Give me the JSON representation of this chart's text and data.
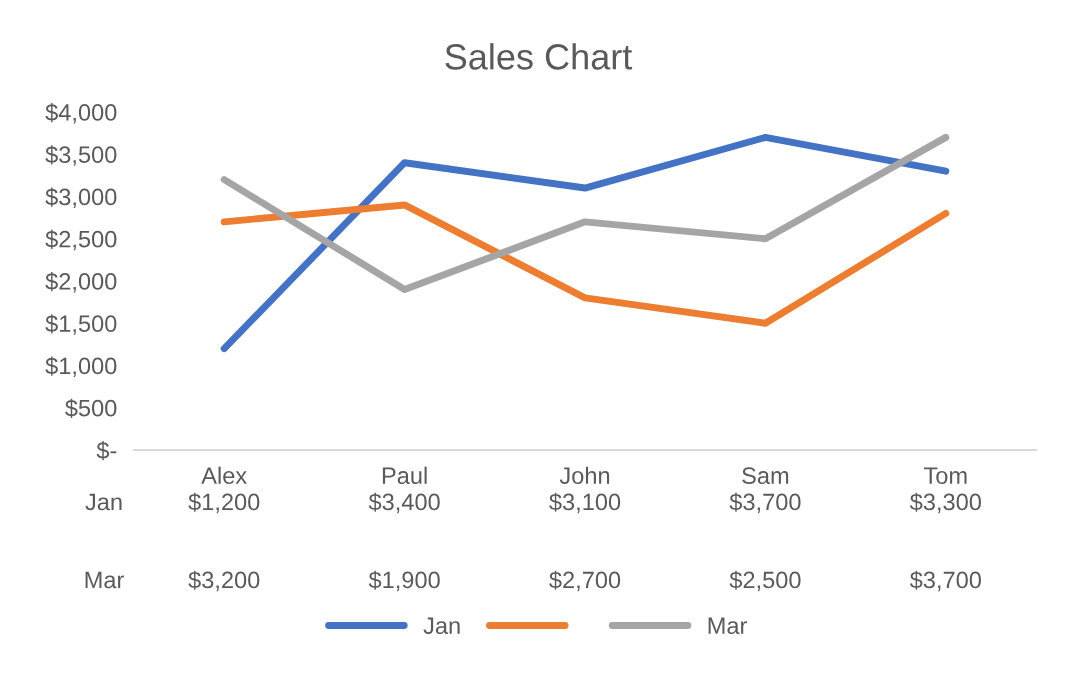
{
  "chart_data": {
    "type": "line",
    "title": "Sales Chart",
    "categories": [
      "Alex",
      "Paul",
      "John",
      "Sam",
      "Tom"
    ],
    "series": [
      {
        "name": "Jan",
        "color": "#4472c4",
        "values": [
          1200,
          3400,
          3100,
          3700,
          3300
        ],
        "value_labels": [
          "$1,200",
          "$3,400",
          "$3,100",
          "$3,700",
          "$3,300"
        ]
      },
      {
        "color": "#ed7d31",
        "values": [
          2700,
          2900,
          1800,
          1500,
          2800
        ]
      },
      {
        "name": "Mar",
        "color": "#a5a5a5",
        "values": [
          3200,
          1900,
          2700,
          2500,
          3700
        ],
        "value_labels": [
          "$3,200",
          "$1,900",
          "$2,700",
          "$2,500",
          "$3,700"
        ]
      }
    ],
    "ylim": [
      0,
      4000
    ],
    "yticks": [
      {
        "value": 0,
        "label": "$-"
      },
      {
        "value": 500,
        "label": "$500"
      },
      {
        "value": 1000,
        "label": "$1,000"
      },
      {
        "value": 1500,
        "label": "$1,500"
      },
      {
        "value": 2000,
        "label": "$2,000"
      },
      {
        "value": 2500,
        "label": "$2,500"
      },
      {
        "value": 3000,
        "label": "$3,000"
      },
      {
        "value": 3500,
        "label": "$3,500"
      },
      {
        "value": 4000,
        "label": "$4,000"
      }
    ],
    "grid": false,
    "legend": "bottom",
    "marker": "none",
    "line_style": "solid"
  }
}
